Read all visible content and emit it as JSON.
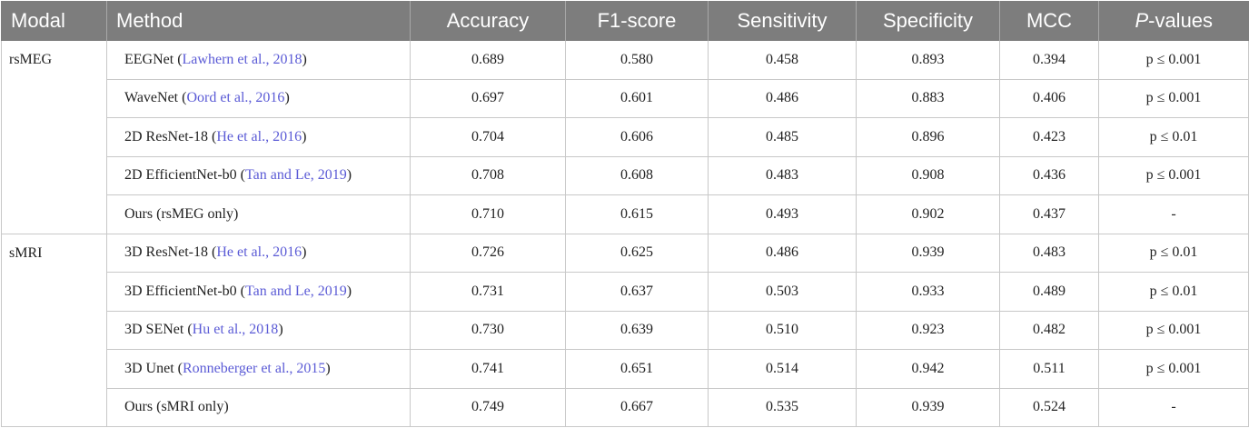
{
  "header": {
    "modal": "Modal",
    "method": "Method",
    "accuracy": "Accuracy",
    "f1": "F1-score",
    "sensitivity": "Sensitivity",
    "specificity": "Specificity",
    "mcc": "MCC",
    "p_italic": "P",
    "p_rest": "-values"
  },
  "groups": [
    {
      "modal": "rsMEG",
      "rows": [
        {
          "method": "EEGNet",
          "cite": "Lawhern et al., 2018",
          "accuracy": "0.689",
          "f1": "0.580",
          "sensitivity": "0.458",
          "specificity": "0.893",
          "mcc": "0.394",
          "p": "p ≤ 0.001"
        },
        {
          "method": "WaveNet",
          "cite": "Oord et al., 2016",
          "accuracy": "0.697",
          "f1": "0.601",
          "sensitivity": "0.486",
          "specificity": "0.883",
          "mcc": "0.406",
          "p": "p ≤ 0.001"
        },
        {
          "method": "2D ResNet-18",
          "cite": "He et al., 2016",
          "accuracy": "0.704",
          "f1": "0.606",
          "sensitivity": "0.485",
          "specificity": "0.896",
          "mcc": "0.423",
          "p": "p ≤ 0.01"
        },
        {
          "method": "2D EfficientNet-b0",
          "cite": "Tan and Le, 2019",
          "accuracy": "0.708",
          "f1": "0.608",
          "sensitivity": "0.483",
          "specificity": "0.908",
          "mcc": "0.436",
          "p": "p ≤ 0.001"
        },
        {
          "method": "Ours (rsMEG only)",
          "cite": "",
          "accuracy": "0.710",
          "f1": "0.615",
          "sensitivity": "0.493",
          "specificity": "0.902",
          "mcc": "0.437",
          "p": "-"
        }
      ]
    },
    {
      "modal": "sMRI",
      "rows": [
        {
          "method": "3D ResNet-18",
          "cite": "He et al., 2016",
          "accuracy": "0.726",
          "f1": "0.625",
          "sensitivity": "0.486",
          "specificity": "0.939",
          "mcc": "0.483",
          "p": "p ≤ 0.01"
        },
        {
          "method": "3D EfficientNet-b0",
          "cite": "Tan and Le, 2019",
          "accuracy": "0.731",
          "f1": "0.637",
          "sensitivity": "0.503",
          "specificity": "0.933",
          "mcc": "0.489",
          "p": "p ≤ 0.01"
        },
        {
          "method": "3D SENet",
          "cite": "Hu et al., 2018",
          "accuracy": "0.730",
          "f1": "0.639",
          "sensitivity": "0.510",
          "specificity": "0.923",
          "mcc": "0.482",
          "p": "p ≤ 0.001"
        },
        {
          "method": "3D Unet",
          "cite": "Ronneberger et al., 2015",
          "accuracy": "0.741",
          "f1": "0.651",
          "sensitivity": "0.514",
          "specificity": "0.942",
          "mcc": "0.511",
          "p": "p ≤ 0.001"
        },
        {
          "method": "Ours (sMRI only)",
          "cite": "",
          "accuracy": "0.749",
          "f1": "0.667",
          "sensitivity": "0.535",
          "specificity": "0.939",
          "mcc": "0.524",
          "p": "-"
        }
      ]
    }
  ]
}
